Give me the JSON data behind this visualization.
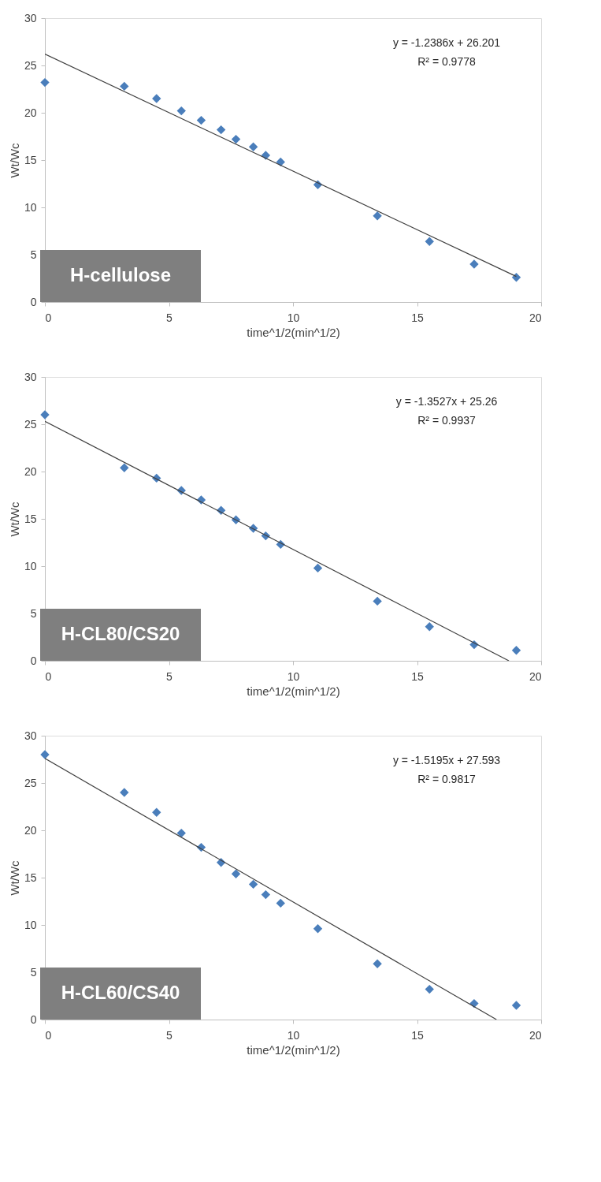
{
  "chart_data": [
    {
      "type": "scatter",
      "xlabel": "time^1/2(min^1/2)",
      "ylabel": "Wt/Wc",
      "xlim": [
        0,
        20
      ],
      "ylim": [
        0,
        30
      ],
      "xticks": [
        0,
        5,
        10,
        15,
        20
      ],
      "yticks": [
        0,
        5,
        10,
        15,
        20,
        25,
        30
      ],
      "grid": false,
      "marker": "diamond",
      "annotations": [
        "y = -1.2386x + 26.201",
        "R² = 0.9778",
        "H-cellulose"
      ],
      "series": [
        {
          "color": "#4a7ebb",
          "x": [
            0,
            3.2,
            4.5,
            5.5,
            6.3,
            7.1,
            7.7,
            8.4,
            8.9,
            9.5,
            11,
            13.4,
            15.5,
            17.3,
            19
          ],
          "values": [
            23.2,
            22.8,
            21.5,
            20.2,
            19.2,
            18.2,
            17.2,
            16.4,
            15.5,
            14.8,
            12.4,
            9.1,
            6.4,
            4.0,
            2.6
          ]
        },
        {
          "type": "line",
          "marker": "none",
          "color": "#404040",
          "x": [
            0,
            19
          ],
          "values": [
            26.2,
            2.7
          ]
        }
      ]
    },
    {
      "type": "scatter",
      "xlabel": "time^1/2(min^1/2)",
      "ylabel": "Wt/Wc",
      "xlim": [
        0,
        20
      ],
      "ylim": [
        0,
        30
      ],
      "xticks": [
        0,
        5,
        10,
        15,
        20
      ],
      "yticks": [
        0,
        5,
        10,
        15,
        20,
        25,
        30
      ],
      "grid": false,
      "marker": "diamond",
      "annotations": [
        "y = -1.3527x + 25.26",
        "R² = 0.9937",
        "H-CL80/CS20"
      ],
      "series": [
        {
          "color": "#4a7ebb",
          "x": [
            0,
            3.2,
            4.5,
            5.5,
            6.3,
            7.1,
            7.7,
            8.4,
            8.9,
            9.5,
            11,
            13.4,
            15.5,
            17.3,
            19
          ],
          "values": [
            26.0,
            20.4,
            19.3,
            18.0,
            17.0,
            15.9,
            14.9,
            14.0,
            13.2,
            12.3,
            9.8,
            6.3,
            3.6,
            1.7,
            1.1
          ]
        },
        {
          "type": "line",
          "marker": "none",
          "color": "#404040",
          "x": [
            0,
            18.7
          ],
          "values": [
            25.3,
            0
          ]
        }
      ]
    },
    {
      "type": "scatter",
      "xlabel": "time^1/2(min^1/2)",
      "ylabel": "Wt/Wc",
      "xlim": [
        0,
        20
      ],
      "ylim": [
        0,
        30
      ],
      "xticks": [
        0,
        5,
        10,
        15,
        20
      ],
      "yticks": [
        0,
        5,
        10,
        15,
        20,
        25,
        30
      ],
      "grid": false,
      "marker": "diamond",
      "annotations": [
        "y = -1.5195x + 27.593",
        "R² = 0.9817",
        "H-CL60/CS40"
      ],
      "series": [
        {
          "color": "#4a7ebb",
          "x": [
            0,
            3.2,
            4.5,
            5.5,
            6.3,
            7.1,
            7.7,
            8.4,
            8.9,
            9.5,
            11,
            13.4,
            15.5,
            17.3,
            19
          ],
          "values": [
            28.0,
            24.0,
            21.9,
            19.7,
            18.2,
            16.6,
            15.4,
            14.3,
            13.2,
            12.3,
            9.6,
            5.9,
            3.2,
            1.7,
            1.5
          ]
        },
        {
          "type": "line",
          "marker": "none",
          "color": "#404040",
          "x": [
            0,
            18.2
          ],
          "values": [
            27.6,
            0
          ]
        }
      ]
    }
  ]
}
